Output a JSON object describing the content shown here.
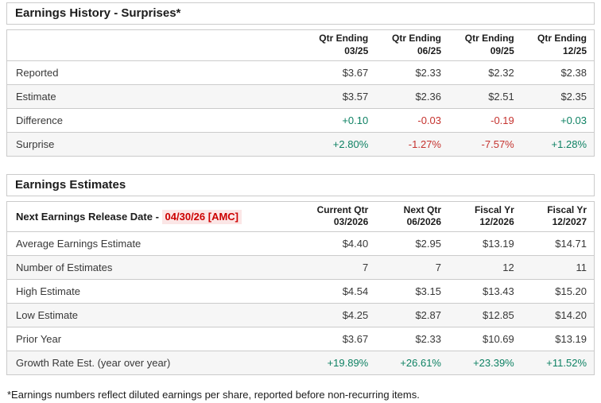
{
  "colors": {
    "positive": "#0f8264",
    "negative": "#c5332f",
    "border": "#cbcbcb",
    "stripe": "#f6f6f6",
    "date_highlight_bg": "#fbe6e6",
    "date_highlight_text": "#cc0000"
  },
  "surprises_table": {
    "title": "Earnings History - Surprises*",
    "columns": [
      {
        "line1": "Qtr Ending",
        "line2": "03/25"
      },
      {
        "line1": "Qtr Ending",
        "line2": "06/25"
      },
      {
        "line1": "Qtr Ending",
        "line2": "09/25"
      },
      {
        "line1": "Qtr Ending",
        "line2": "12/25"
      }
    ],
    "rows": [
      {
        "label": "Reported",
        "values": [
          "$3.67",
          "$2.33",
          "$2.32",
          "$2.38"
        ]
      },
      {
        "label": "Estimate",
        "values": [
          "$3.57",
          "$2.36",
          "$2.51",
          "$2.35"
        ]
      },
      {
        "label": "Difference",
        "values": [
          "+0.10",
          "-0.03",
          "-0.19",
          "+0.03"
        ],
        "tones": [
          "pos",
          "neg",
          "neg",
          "pos"
        ]
      },
      {
        "label": "Surprise",
        "values": [
          "+2.80%",
          "-1.27%",
          "-7.57%",
          "+1.28%"
        ],
        "tones": [
          "pos",
          "neg",
          "neg",
          "pos"
        ]
      }
    ]
  },
  "estimates_table": {
    "title": "Earnings Estimates",
    "release_label": "Next Earnings Release Date - ",
    "release_date": "04/30/26 [AMC]",
    "columns": [
      {
        "line1": "Current Qtr",
        "line2": "03/2026"
      },
      {
        "line1": "Next Qtr",
        "line2": "06/2026"
      },
      {
        "line1": "Fiscal Yr",
        "line2": "12/2026"
      },
      {
        "line1": "Fiscal Yr",
        "line2": "12/2027"
      }
    ],
    "rows": [
      {
        "label": "Average Earnings Estimate",
        "values": [
          "$4.40",
          "$2.95",
          "$13.19",
          "$14.71"
        ]
      },
      {
        "label": "Number of Estimates",
        "values": [
          "7",
          "7",
          "12",
          "11"
        ]
      },
      {
        "label": "High Estimate",
        "values": [
          "$4.54",
          "$3.15",
          "$13.43",
          "$15.20"
        ]
      },
      {
        "label": "Low Estimate",
        "values": [
          "$4.25",
          "$2.87",
          "$12.85",
          "$14.20"
        ]
      },
      {
        "label": "Prior Year",
        "values": [
          "$3.67",
          "$2.33",
          "$10.69",
          "$13.19"
        ]
      },
      {
        "label": "Growth Rate Est. (year over year)",
        "values": [
          "+19.89%",
          "+26.61%",
          "+23.39%",
          "+11.52%"
        ],
        "tones": [
          "pos",
          "pos",
          "pos",
          "pos"
        ]
      }
    ]
  },
  "footnote": "*Earnings numbers reflect diluted earnings per share, reported before non-recurring items."
}
